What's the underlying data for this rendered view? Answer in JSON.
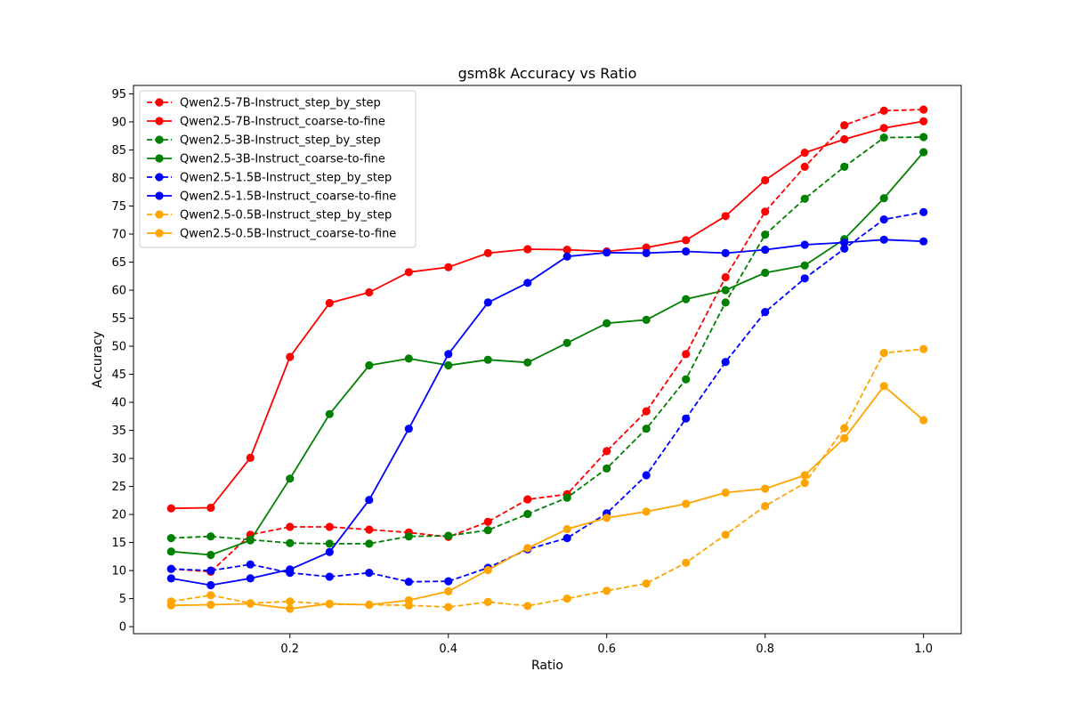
{
  "chart_data": {
    "type": "line",
    "title": "gsm8k Accuracy vs Ratio",
    "xlabel": "Ratio",
    "ylabel": "Accuracy",
    "xlim": [
      0.0025,
      1.0475
    ],
    "ylim": [
      -1.25,
      96.5
    ],
    "xticks": [
      0.2,
      0.4,
      0.6,
      0.8,
      1.0
    ],
    "xtick_labels": [
      "0.2",
      "0.4",
      "0.6",
      "0.8",
      "1.0"
    ],
    "yticks": [
      0,
      5,
      10,
      15,
      20,
      25,
      30,
      35,
      40,
      45,
      50,
      55,
      60,
      65,
      70,
      75,
      80,
      85,
      90,
      95
    ],
    "ytick_labels": [
      "0",
      "5",
      "10",
      "15",
      "20",
      "25",
      "30",
      "35",
      "40",
      "45",
      "50",
      "55",
      "60",
      "65",
      "70",
      "75",
      "80",
      "85",
      "90",
      "95"
    ],
    "grid": false,
    "legend_position": "top-left",
    "x": [
      0.05,
      0.1,
      0.15,
      0.2,
      0.25,
      0.3,
      0.35,
      0.4,
      0.45,
      0.5,
      0.55,
      0.6,
      0.65,
      0.7,
      0.75,
      0.8,
      0.85,
      0.9,
      0.95,
      1.0
    ],
    "series": [
      {
        "name": "Qwen2.5-7B-Instruct_step_by_step",
        "color": "#ff0000",
        "dashed": true,
        "values": [
          10.3,
          9.8,
          16.4,
          17.8,
          17.8,
          17.3,
          16.8,
          16.0,
          18.7,
          22.7,
          23.6,
          31.3,
          38.4,
          48.6,
          62.3,
          74.0,
          82.0,
          89.4,
          92.0,
          92.2
        ]
      },
      {
        "name": "Qwen2.5-7B-Instruct_coarse-to-fine",
        "color": "#ff0000",
        "dashed": false,
        "values": [
          21.1,
          21.2,
          30.1,
          48.1,
          57.7,
          59.6,
          63.2,
          64.1,
          66.6,
          67.3,
          67.2,
          66.9,
          67.6,
          68.9,
          73.2,
          79.6,
          84.5,
          86.9,
          88.9,
          90.1
        ]
      },
      {
        "name": "Qwen2.5-3B-Instruct_step_by_step",
        "color": "#008000",
        "dashed": true,
        "values": [
          15.8,
          16.1,
          15.5,
          14.9,
          14.8,
          14.8,
          16.1,
          16.2,
          17.2,
          20.1,
          23.0,
          28.2,
          35.3,
          44.1,
          57.8,
          69.9,
          76.3,
          82.0,
          87.2,
          87.3
        ]
      },
      {
        "name": "Qwen2.5-3B-Instruct_coarse-to-fine",
        "color": "#008000",
        "dashed": false,
        "values": [
          13.4,
          12.8,
          15.4,
          26.4,
          37.9,
          46.6,
          47.8,
          46.6,
          47.6,
          47.1,
          50.6,
          54.1,
          54.7,
          58.4,
          60.0,
          63.1,
          64.4,
          69.1,
          76.4,
          84.6
        ]
      },
      {
        "name": "Qwen2.5-1.5B-Instruct_step_by_step",
        "color": "#0000ff",
        "dashed": true,
        "values": [
          10.3,
          10.0,
          11.1,
          9.6,
          8.9,
          9.6,
          8.0,
          8.1,
          10.5,
          13.8,
          15.8,
          20.2,
          27.0,
          37.1,
          47.2,
          56.1,
          62.1,
          67.4,
          72.6,
          73.9
        ]
      },
      {
        "name": "Qwen2.5-1.5B-Instruct_coarse-to-fine",
        "color": "#0000ff",
        "dashed": false,
        "values": [
          8.6,
          7.4,
          8.6,
          10.2,
          13.3,
          22.6,
          35.3,
          48.6,
          57.8,
          61.3,
          66.0,
          66.7,
          66.6,
          66.9,
          66.6,
          67.2,
          68.1,
          68.5,
          69.0,
          68.7
        ]
      },
      {
        "name": "Qwen2.5-0.5B-Instruct_step_by_step",
        "color": "#ffa500",
        "dashed": true,
        "values": [
          4.5,
          5.6,
          4.2,
          4.5,
          4.0,
          3.9,
          3.8,
          3.5,
          4.4,
          3.7,
          5.0,
          6.4,
          7.7,
          11.4,
          16.4,
          21.5,
          25.6,
          35.4,
          48.8,
          49.5
        ]
      },
      {
        "name": "Qwen2.5-0.5B-Instruct_coarse-to-fine",
        "color": "#ffa500",
        "dashed": false,
        "values": [
          3.8,
          3.9,
          4.1,
          3.2,
          4.1,
          3.9,
          4.7,
          6.3,
          10.1,
          14.0,
          17.4,
          19.4,
          20.5,
          21.9,
          23.9,
          24.6,
          27.0,
          33.6,
          42.9,
          36.8
        ]
      }
    ]
  }
}
